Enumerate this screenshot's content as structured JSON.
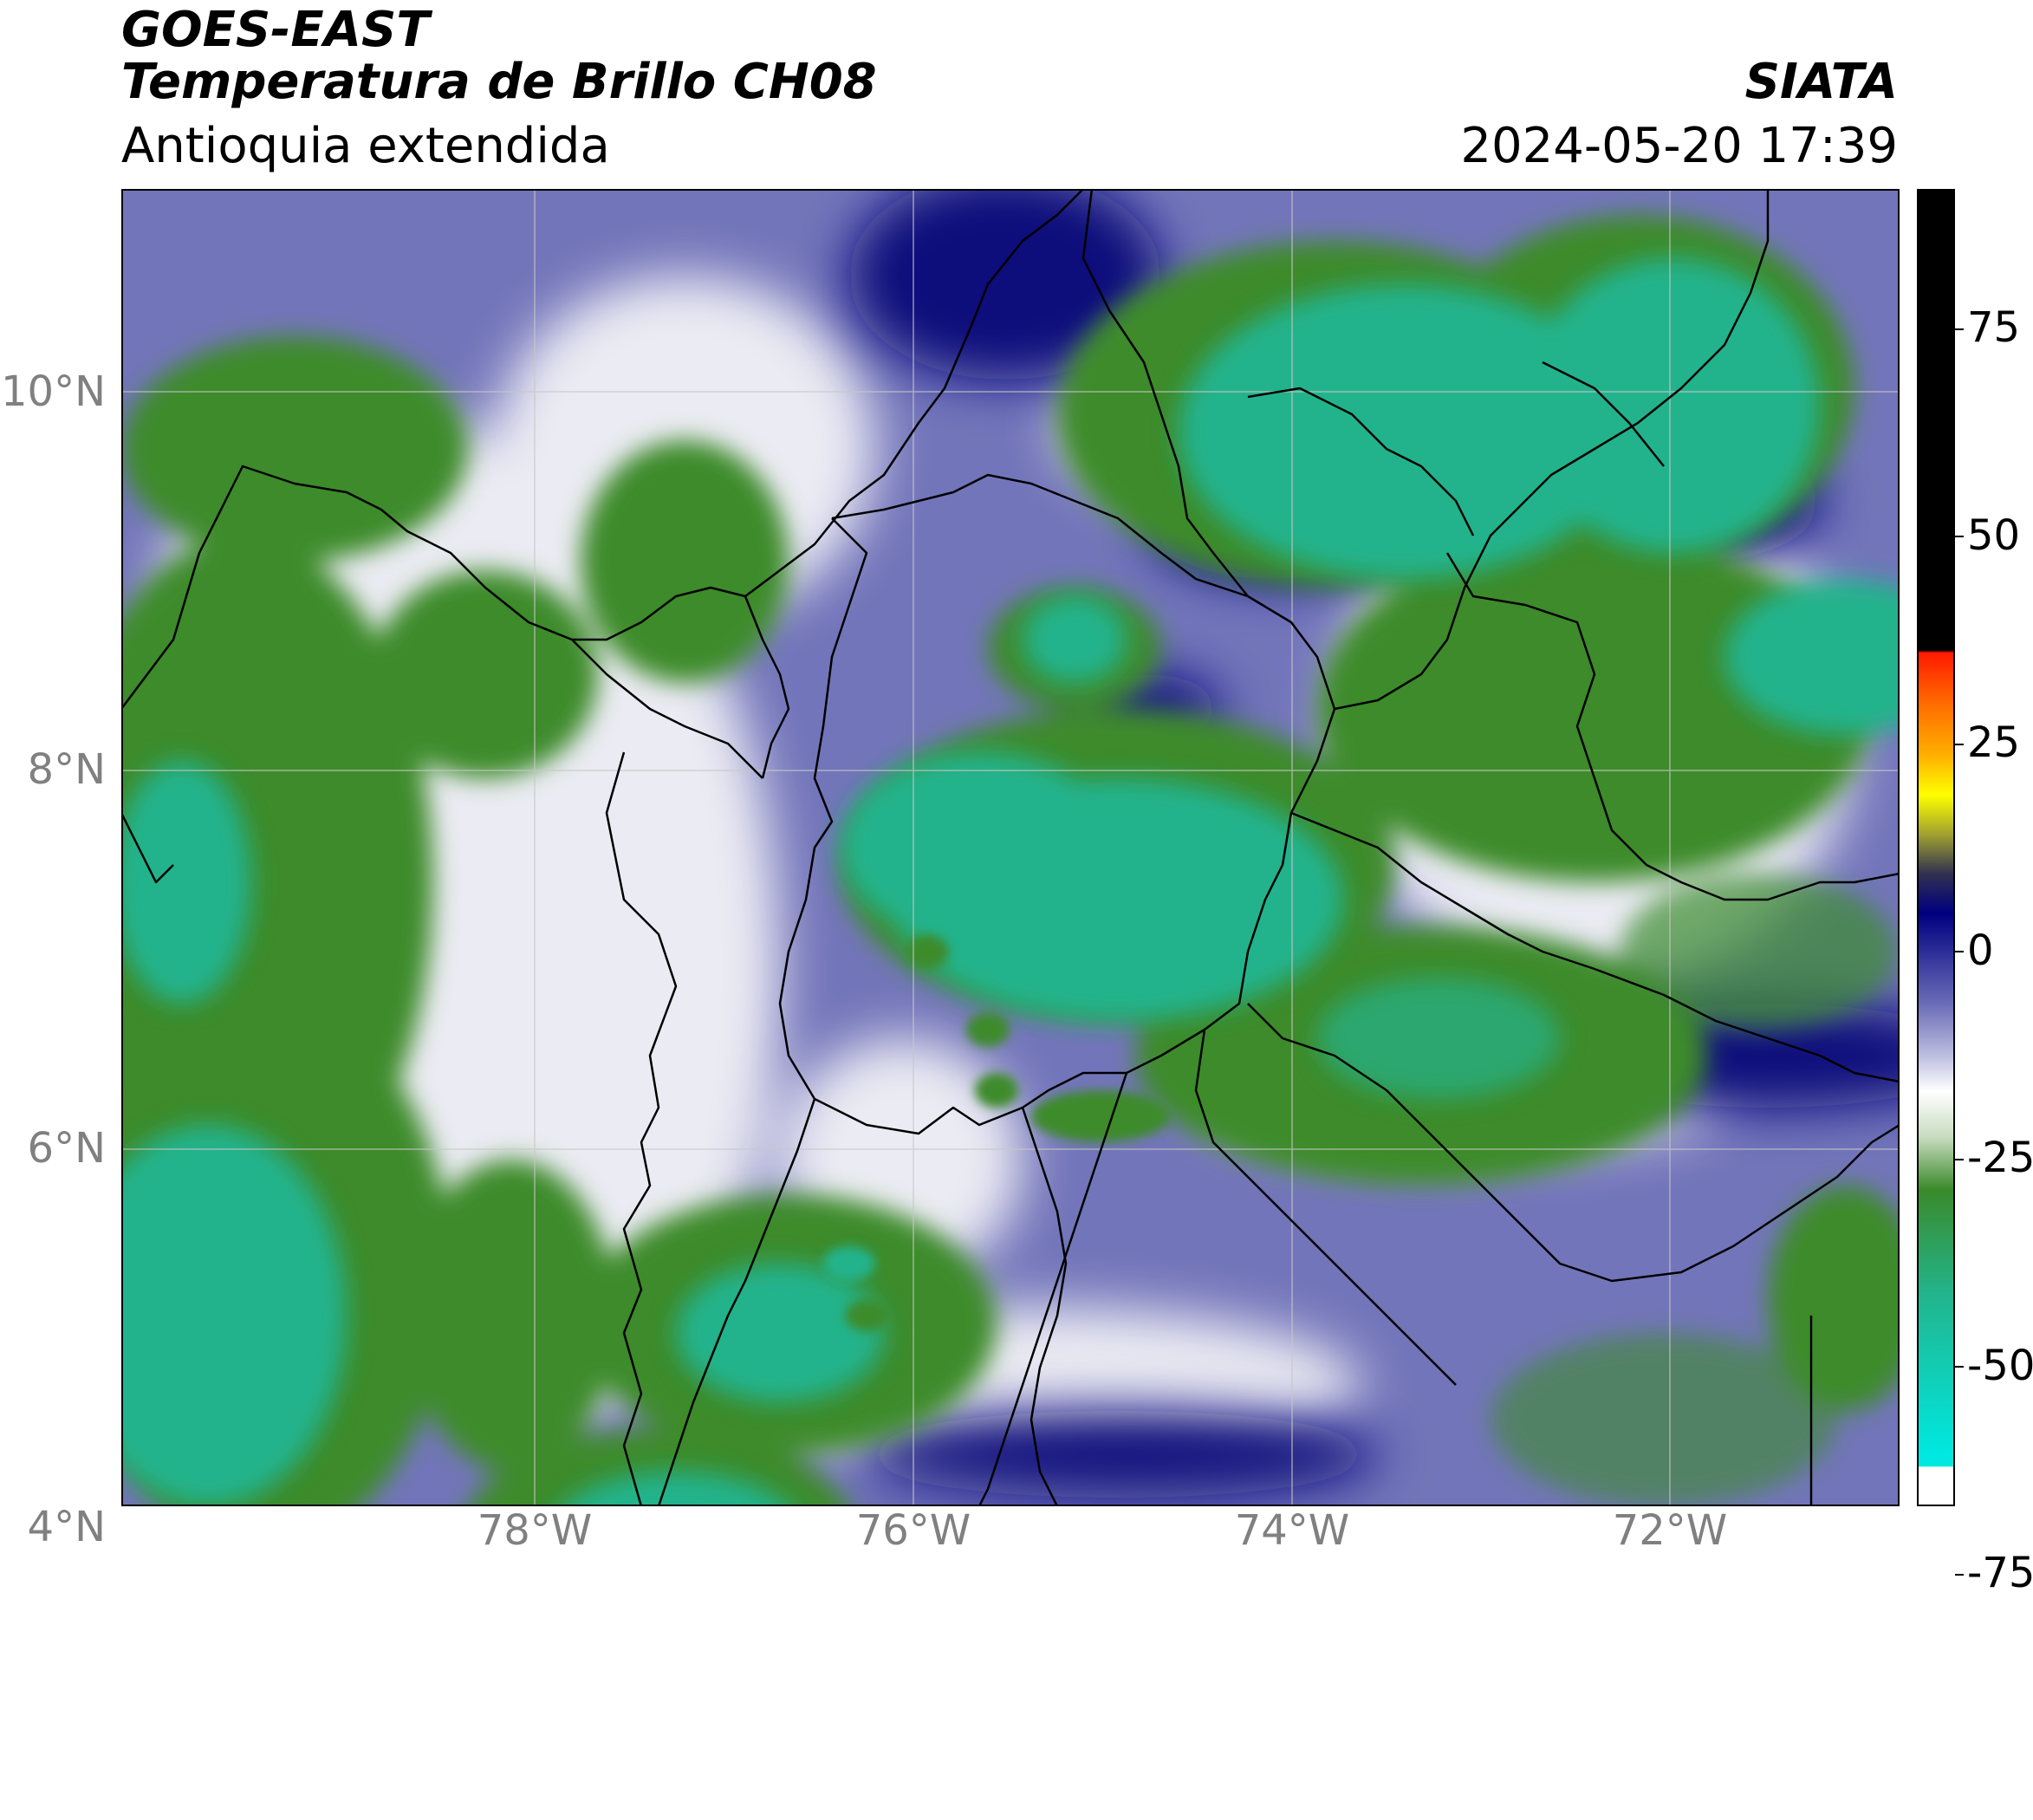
{
  "header": {
    "title_line1": "GOES-EAST",
    "title_line2": "Temperatura de Brillo CH08",
    "subtitle": "Antioquia extendida",
    "org": "SIATA",
    "datetime": "2024-05-20 17:39"
  },
  "axes": {
    "lat_labels": [
      "10°N",
      "8°N",
      "6°N",
      "4°N"
    ],
    "lon_labels": [
      "78°W",
      "76°W",
      "74°W",
      "72°W"
    ]
  },
  "colorbar": {
    "tick_labels": [
      "75",
      "50",
      "25",
      "0",
      "-25",
      "-50",
      "-75"
    ],
    "range": [
      -90,
      90
    ],
    "colors": {
      "black": "#000000",
      "red": "#ff0000",
      "yellow": "#ffff00",
      "navy": "#000080",
      "lavender": "#8a8ccc",
      "white": "#ffffff",
      "green": "#3a8a2a",
      "teal": "#1ec0a0",
      "cyan": "#00e6e6"
    }
  },
  "map": {
    "extent": {
      "lon": [
        -80.2,
        -70.8
      ],
      "lat": [
        2.2,
        11.1
      ]
    },
    "gridlines": true,
    "colors": {
      "background": "#6e70b8",
      "cold_green": "#3f8f2e",
      "coldest_teal": "#22b48c",
      "clear_white": "#f4f4f8",
      "deep_blue": "#0a1078",
      "borders": "#000000"
    }
  }
}
